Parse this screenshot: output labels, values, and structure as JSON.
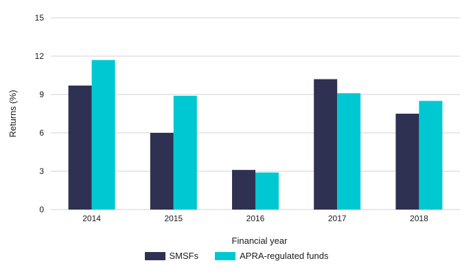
{
  "chart_data": {
    "type": "bar",
    "title": "",
    "xlabel": "Financial year",
    "ylabel": "Returns (%)",
    "ylim": [
      0,
      15
    ],
    "yticks": [
      0,
      3,
      6,
      9,
      12,
      15
    ],
    "grid": true,
    "legend_position": "bottom-center",
    "categories": [
      "2014",
      "2015",
      "2016",
      "2017",
      "2018"
    ],
    "series": [
      {
        "name": "SMSFs",
        "color": "#2e3152",
        "values": [
          9.7,
          6.0,
          3.1,
          10.2,
          7.5
        ]
      },
      {
        "name": "APRA-regulated funds",
        "color": "#00c8d2",
        "values": [
          11.7,
          8.9,
          2.9,
          9.1,
          8.5
        ]
      }
    ]
  }
}
